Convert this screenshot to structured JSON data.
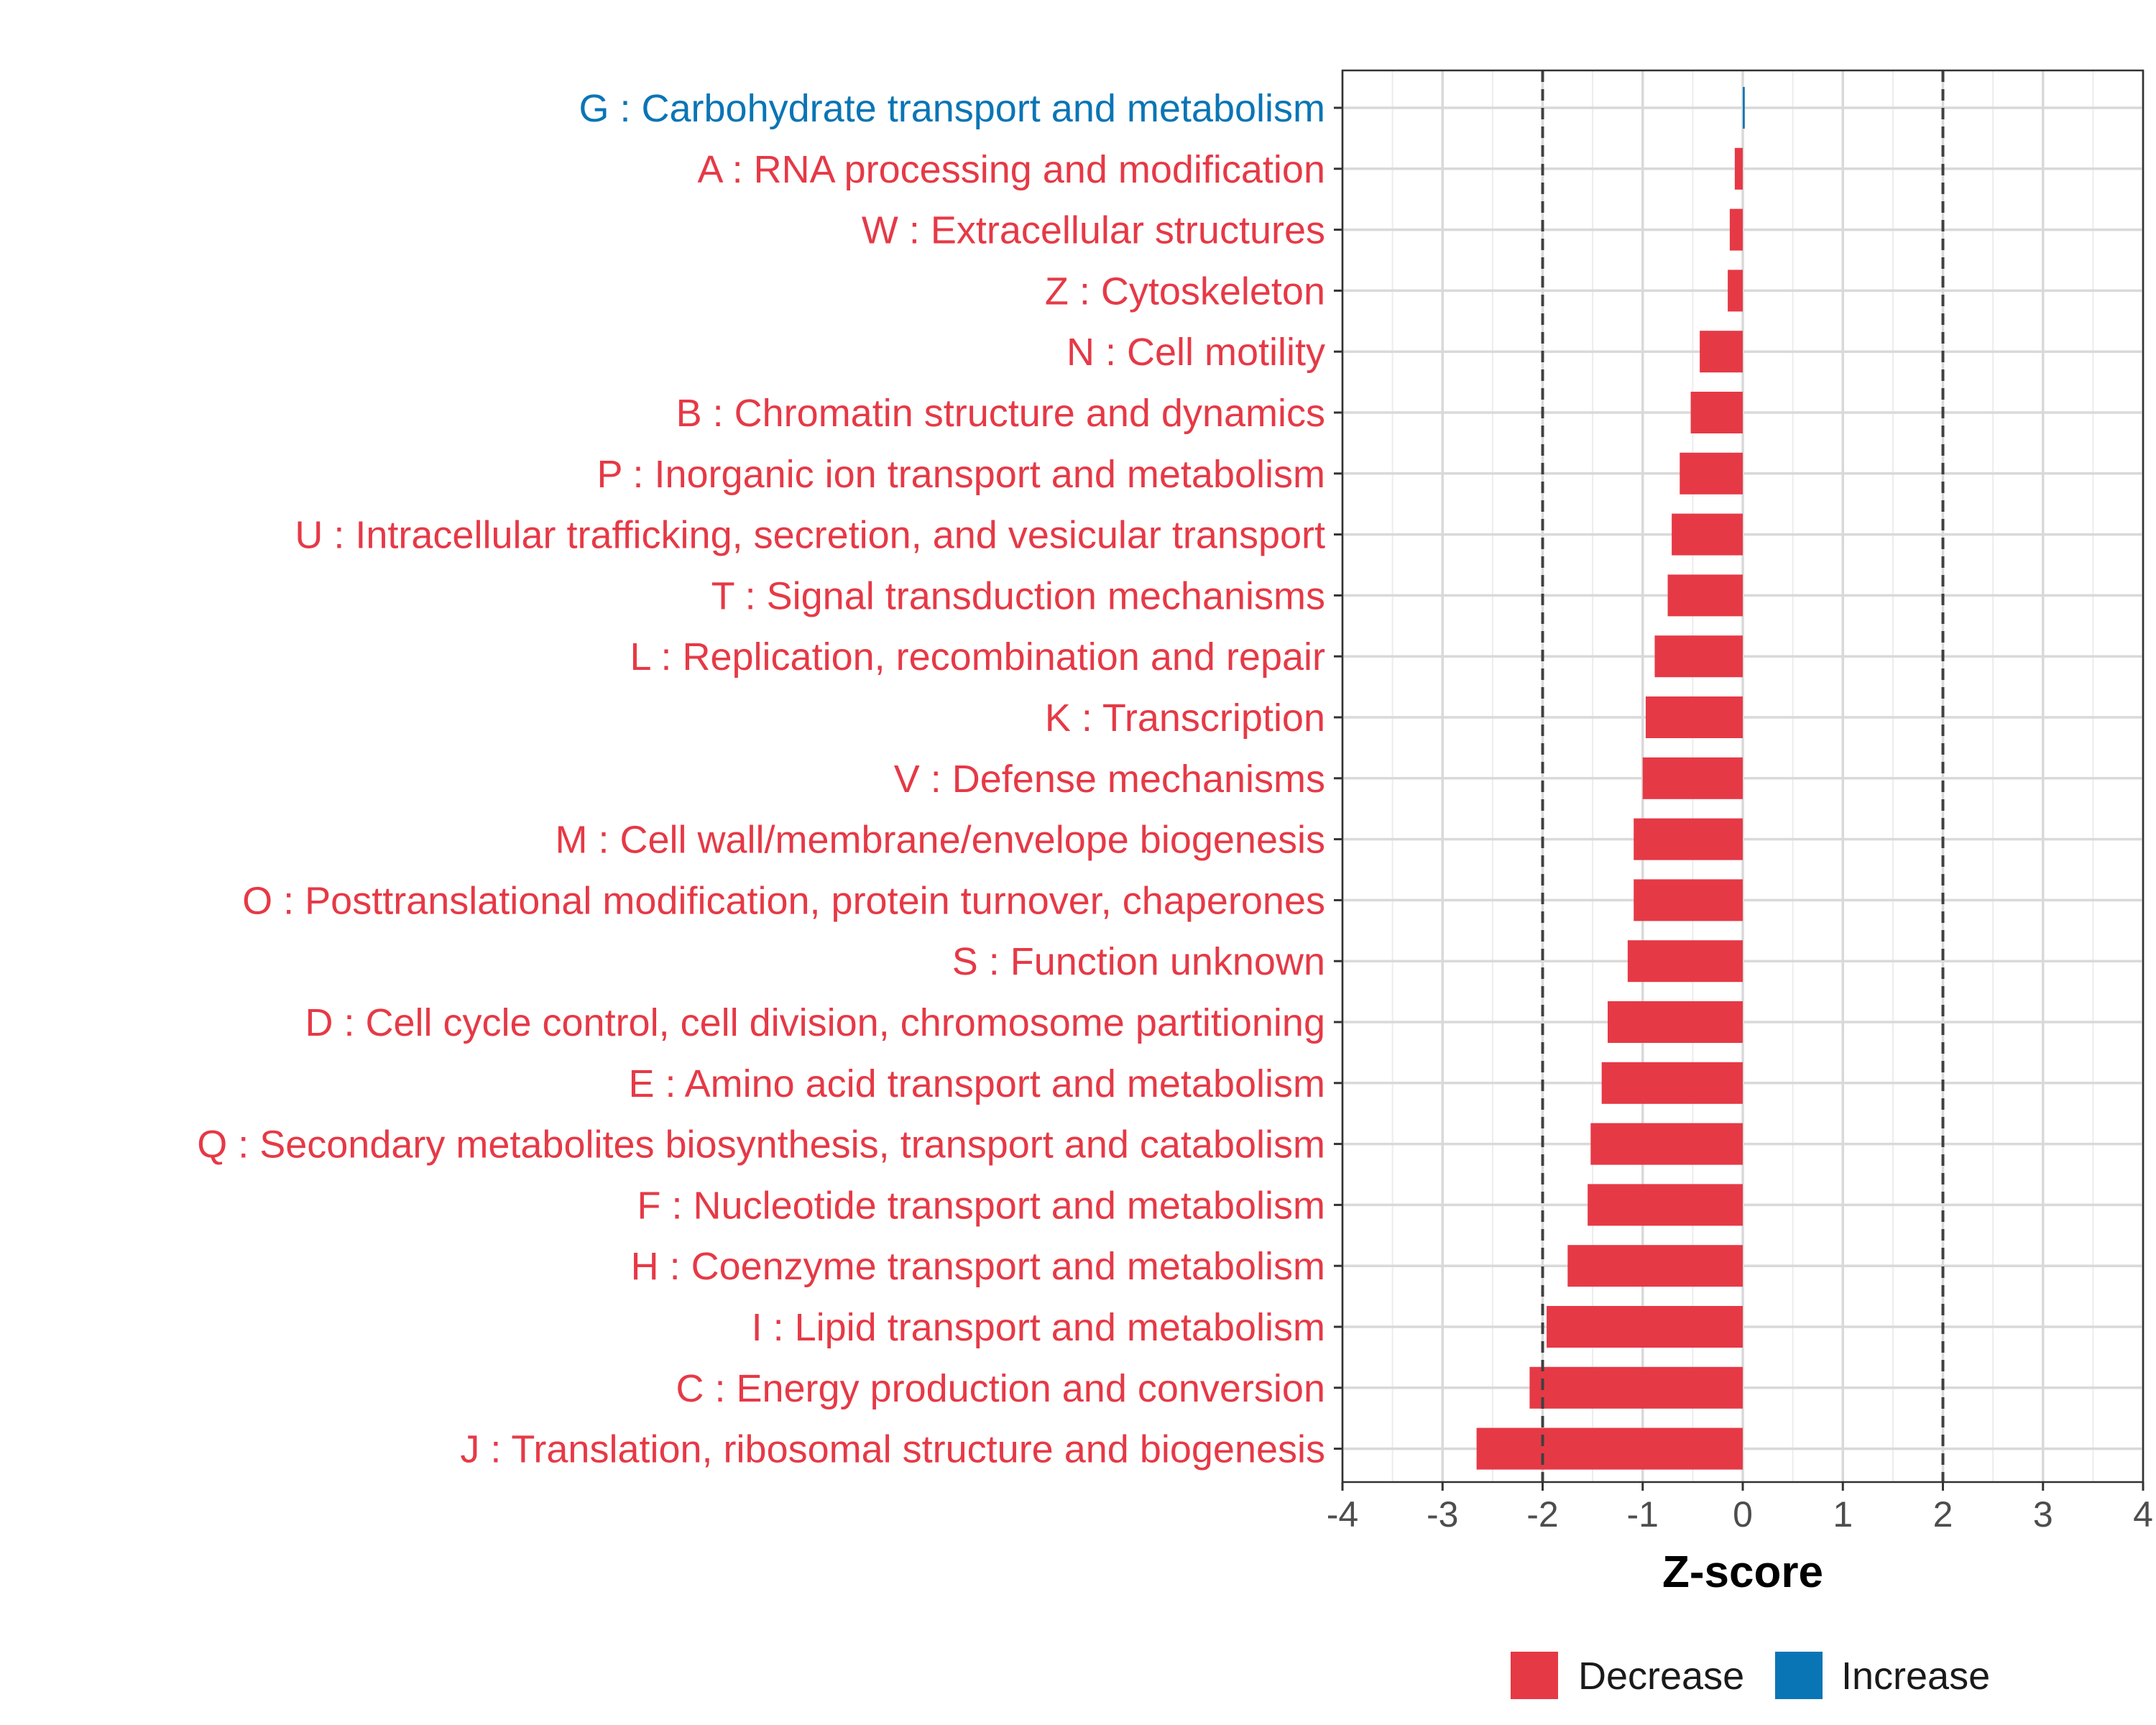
{
  "chart_data": {
    "type": "bar",
    "orientation": "horizontal",
    "xlabel": "Z-score",
    "xlim": [
      -4,
      4
    ],
    "xticks": [
      -4,
      -3,
      -2,
      -1,
      0,
      1,
      2,
      3,
      4
    ],
    "tick_labels": [
      "-4",
      "-3",
      "-2",
      "-1",
      "0",
      "1",
      "2",
      "3",
      "4"
    ],
    "reference_lines": [
      -2,
      2
    ],
    "grid": true,
    "colors": {
      "Decrease": "#E63946",
      "Increase": "#0A75B5"
    },
    "legend": {
      "placement": "bottom-right",
      "entries": [
        "Decrease",
        "Increase"
      ]
    },
    "categories": [
      "G : Carbohydrate transport and metabolism",
      "A : RNA processing and modification",
      "W : Extracellular structures",
      "Z : Cytoskeleton",
      "N : Cell motility",
      "B : Chromatin structure and dynamics",
      "P : Inorganic ion transport and metabolism",
      "U : Intracellular trafficking, secretion, and vesicular transport",
      "T : Signal transduction mechanisms",
      "L : Replication, recombination and repair",
      "K : Transcription",
      "V : Defense mechanisms",
      "M : Cell wall/membrane/envelope biogenesis",
      "O : Posttranslational modification, protein turnover, chaperones",
      "S : Function unknown",
      "D : Cell cycle control, cell division, chromosome partitioning",
      "E : Amino acid transport and metabolism",
      "Q : Secondary metabolites biosynthesis, transport and catabolism",
      "F : Nucleotide transport and metabolism",
      "H : Coenzyme transport and metabolism",
      "I : Lipid transport and metabolism",
      "C : Energy production and conversion",
      "J : Translation, ribosomal structure and biogenesis"
    ],
    "values": [
      0.02,
      -0.08,
      -0.13,
      -0.15,
      -0.43,
      -0.52,
      -0.63,
      -0.71,
      -0.75,
      -0.88,
      -0.97,
      -1.0,
      -1.09,
      -1.09,
      -1.15,
      -1.35,
      -1.41,
      -1.52,
      -1.55,
      -1.75,
      -1.96,
      -2.13,
      -2.66
    ],
    "groups": [
      "Increase",
      "Decrease",
      "Decrease",
      "Decrease",
      "Decrease",
      "Decrease",
      "Decrease",
      "Decrease",
      "Decrease",
      "Decrease",
      "Decrease",
      "Decrease",
      "Decrease",
      "Decrease",
      "Decrease",
      "Decrease",
      "Decrease",
      "Decrease",
      "Decrease",
      "Decrease",
      "Decrease",
      "Decrease",
      "Decrease"
    ]
  }
}
